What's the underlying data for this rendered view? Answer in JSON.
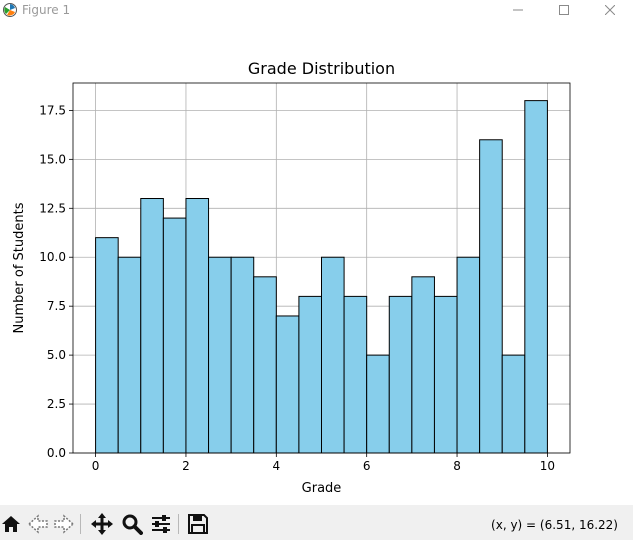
{
  "window": {
    "title": "Figure 1",
    "controls": {
      "minimize_icon": "minimize-icon",
      "maximize_icon": "maximize-icon",
      "close_icon": "close-icon"
    }
  },
  "chart_data": {
    "type": "bar",
    "title": "Grade Distribution",
    "xlabel": "Grade",
    "ylabel": "Number of Students",
    "xlim": [
      -0.5,
      10.5
    ],
    "ylim": [
      0,
      18.9
    ],
    "xticks": [
      0,
      2,
      4,
      6,
      8,
      10
    ],
    "xtick_labels": [
      "0",
      "2",
      "4",
      "6",
      "8",
      "10"
    ],
    "yticks": [
      0,
      2.5,
      5,
      7.5,
      10,
      12.5,
      15,
      17.5
    ],
    "ytick_labels": [
      "0.0",
      "2.5",
      "5.0",
      "7.5",
      "10.0",
      "12.5",
      "15.0",
      "17.5"
    ],
    "grid": true,
    "bin_edges": [
      0,
      0.5,
      1,
      1.5,
      2,
      2.5,
      3,
      3.5,
      4,
      4.5,
      5,
      5.5,
      6,
      6.5,
      7,
      7.5,
      8,
      8.5,
      9,
      9.5,
      10
    ],
    "values": [
      11,
      10,
      13,
      12,
      13,
      10,
      10,
      9,
      7,
      8,
      10,
      8,
      5,
      8,
      9,
      8,
      10,
      16,
      5,
      18
    ],
    "bar_color": "#87ceeb",
    "edge_color": "#000000"
  },
  "toolbar": {
    "buttons": [
      "home-icon",
      "back-icon",
      "forward-icon",
      "pan-icon",
      "zoom-icon",
      "configure-subplots-icon",
      "save-icon"
    ],
    "coords_text": "(x, y) = (6.51, 16.22)"
  }
}
